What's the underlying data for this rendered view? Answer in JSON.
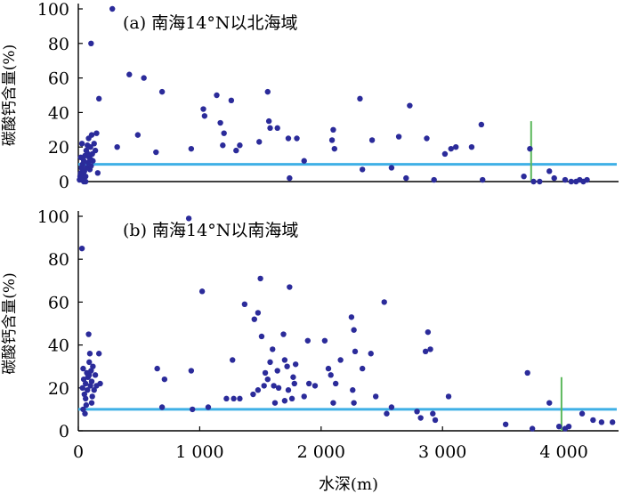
{
  "chart_data": [
    {
      "type": "scatter",
      "title": "(a) 南海14°N以北海域",
      "ylabel": "碳酸钙含量(%)",
      "xlabel": "",
      "xlim": [
        0,
        4450
      ],
      "ylim": [
        0,
        100
      ],
      "yticks": [
        0,
        20,
        40,
        60,
        80,
        100
      ],
      "xticks": [],
      "grid": false,
      "point_color": "#2b2b9a",
      "threshold": {
        "y": 10,
        "color": "#3fb0e6"
      },
      "ccd_marker": {
        "x": 3730,
        "y_top": 35,
        "color": "#5cb85c"
      },
      "points": [
        [
          10,
          1
        ],
        [
          15,
          3
        ],
        [
          20,
          5
        ],
        [
          25,
          8
        ],
        [
          30,
          2
        ],
        [
          35,
          10
        ],
        [
          40,
          4
        ],
        [
          45,
          12
        ],
        [
          50,
          6
        ],
        [
          55,
          15
        ],
        [
          60,
          3
        ],
        [
          65,
          18
        ],
        [
          70,
          8
        ],
        [
          75,
          21
        ],
        [
          80,
          11
        ],
        [
          85,
          25
        ],
        [
          90,
          14
        ],
        [
          95,
          7
        ],
        [
          100,
          20
        ],
        [
          105,
          9
        ],
        [
          110,
          27
        ],
        [
          115,
          16
        ],
        [
          120,
          12
        ],
        [
          130,
          22
        ],
        [
          140,
          18
        ],
        [
          150,
          28
        ],
        [
          160,
          5
        ],
        [
          20,
          14
        ],
        [
          30,
          22
        ],
        [
          45,
          0
        ],
        [
          60,
          0
        ],
        [
          80,
          16
        ],
        [
          100,
          13
        ],
        [
          105,
          80
        ],
        [
          170,
          48
        ],
        [
          280,
          100
        ],
        [
          320,
          20
        ],
        [
          420,
          62
        ],
        [
          490,
          27
        ],
        [
          540,
          60
        ],
        [
          640,
          17
        ],
        [
          690,
          52
        ],
        [
          930,
          19
        ],
        [
          1030,
          42
        ],
        [
          1040,
          38
        ],
        [
          1140,
          50
        ],
        [
          1170,
          34
        ],
        [
          1190,
          21
        ],
        [
          1200,
          28
        ],
        [
          1260,
          47
        ],
        [
          1300,
          18
        ],
        [
          1330,
          21
        ],
        [
          1490,
          23
        ],
        [
          1560,
          52
        ],
        [
          1570,
          35
        ],
        [
          1580,
          31
        ],
        [
          1640,
          31
        ],
        [
          1730,
          25
        ],
        [
          1740,
          2
        ],
        [
          1800,
          25
        ],
        [
          1860,
          12
        ],
        [
          2090,
          24
        ],
        [
          2100,
          30
        ],
        [
          2110,
          19
        ],
        [
          2320,
          48
        ],
        [
          2340,
          7
        ],
        [
          2420,
          24
        ],
        [
          2580,
          8
        ],
        [
          2640,
          26
        ],
        [
          2700,
          2
        ],
        [
          2730,
          44
        ],
        [
          2870,
          25
        ],
        [
          2930,
          1
        ],
        [
          3020,
          16
        ],
        [
          3070,
          19
        ],
        [
          3110,
          20
        ],
        [
          3240,
          20
        ],
        [
          3320,
          33
        ],
        [
          3330,
          1
        ],
        [
          3670,
          3
        ],
        [
          3720,
          19
        ],
        [
          3750,
          0
        ],
        [
          3800,
          0
        ],
        [
          3880,
          6
        ],
        [
          3920,
          2
        ],
        [
          4010,
          1
        ],
        [
          4060,
          0
        ],
        [
          4100,
          0
        ],
        [
          4130,
          1
        ],
        [
          4160,
          0
        ],
        [
          4190,
          1
        ]
      ]
    },
    {
      "type": "scatter",
      "title": "(b) 南海14°N以南海域",
      "ylabel": "碳酸钙含量(%)",
      "xlabel": "水深(m)",
      "xlim": [
        0,
        4450
      ],
      "ylim": [
        0,
        100
      ],
      "yticks": [
        0,
        20,
        40,
        60,
        80,
        100
      ],
      "xticks": [
        0,
        1000,
        2000,
        3000,
        4000
      ],
      "xtick_labels": [
        "0",
        "1 000",
        "2 000",
        "3 000",
        "4 000"
      ],
      "grid": false,
      "point_color": "#2b2b9a",
      "threshold": {
        "y": 10,
        "color": "#3fb0e6"
      },
      "ccd_marker": {
        "x": 3980,
        "y_top": 25,
        "color": "#5cb85c"
      },
      "points": [
        [
          30,
          85
        ],
        [
          35,
          20
        ],
        [
          40,
          29
        ],
        [
          45,
          24
        ],
        [
          50,
          17
        ],
        [
          55,
          8
        ],
        [
          60,
          22
        ],
        [
          65,
          12
        ],
        [
          70,
          27
        ],
        [
          75,
          19
        ],
        [
          80,
          25
        ],
        [
          85,
          45
        ],
        [
          90,
          26
        ],
        [
          95,
          36
        ],
        [
          100,
          21
        ],
        [
          105,
          28
        ],
        [
          110,
          23
        ],
        [
          115,
          16
        ],
        [
          120,
          30
        ],
        [
          130,
          19
        ],
        [
          140,
          26
        ],
        [
          150,
          21
        ],
        [
          170,
          36
        ],
        [
          180,
          22
        ],
        [
          40,
          10
        ],
        [
          60,
          15
        ],
        [
          90,
          32
        ],
        [
          110,
          13
        ],
        [
          650,
          29
        ],
        [
          690,
          11
        ],
        [
          710,
          24
        ],
        [
          910,
          99
        ],
        [
          930,
          28
        ],
        [
          940,
          10
        ],
        [
          1020,
          65
        ],
        [
          1070,
          11
        ],
        [
          1220,
          15
        ],
        [
          1270,
          33
        ],
        [
          1280,
          15
        ],
        [
          1330,
          15
        ],
        [
          1370,
          59
        ],
        [
          1440,
          17
        ],
        [
          1450,
          52
        ],
        [
          1480,
          55
        ],
        [
          1480,
          19
        ],
        [
          1500,
          71
        ],
        [
          1510,
          44
        ],
        [
          1530,
          21
        ],
        [
          1540,
          27
        ],
        [
          1560,
          24
        ],
        [
          1580,
          32
        ],
        [
          1600,
          38
        ],
        [
          1610,
          21
        ],
        [
          1620,
          13
        ],
        [
          1640,
          28
        ],
        [
          1650,
          20
        ],
        [
          1690,
          45
        ],
        [
          1700,
          14
        ],
        [
          1700,
          33
        ],
        [
          1720,
          30
        ],
        [
          1730,
          19
        ],
        [
          1740,
          67
        ],
        [
          1760,
          15
        ],
        [
          1770,
          25
        ],
        [
          1780,
          22
        ],
        [
          1790,
          31
        ],
        [
          1860,
          16
        ],
        [
          1890,
          42
        ],
        [
          1900,
          22
        ],
        [
          1950,
          21
        ],
        [
          2030,
          42
        ],
        [
          2060,
          29
        ],
        [
          2080,
          26
        ],
        [
          2100,
          13
        ],
        [
          2120,
          22
        ],
        [
          2160,
          33
        ],
        [
          2250,
          53
        ],
        [
          2260,
          19
        ],
        [
          2270,
          47
        ],
        [
          2270,
          13
        ],
        [
          2280,
          37
        ],
        [
          2340,
          29
        ],
        [
          2410,
          36
        ],
        [
          2450,
          16
        ],
        [
          2520,
          60
        ],
        [
          2540,
          8
        ],
        [
          2580,
          11
        ],
        [
          2790,
          9
        ],
        [
          2820,
          6
        ],
        [
          2860,
          37
        ],
        [
          2880,
          46
        ],
        [
          2900,
          38
        ],
        [
          2920,
          8
        ],
        [
          2940,
          5
        ],
        [
          3050,
          16
        ],
        [
          3520,
          3
        ],
        [
          3700,
          27
        ],
        [
          3740,
          1
        ],
        [
          3880,
          13
        ],
        [
          3960,
          2
        ],
        [
          4010,
          1
        ],
        [
          4040,
          2
        ],
        [
          4150,
          8
        ],
        [
          4240,
          5
        ],
        [
          4310,
          4
        ],
        [
          4400,
          4
        ]
      ]
    }
  ]
}
